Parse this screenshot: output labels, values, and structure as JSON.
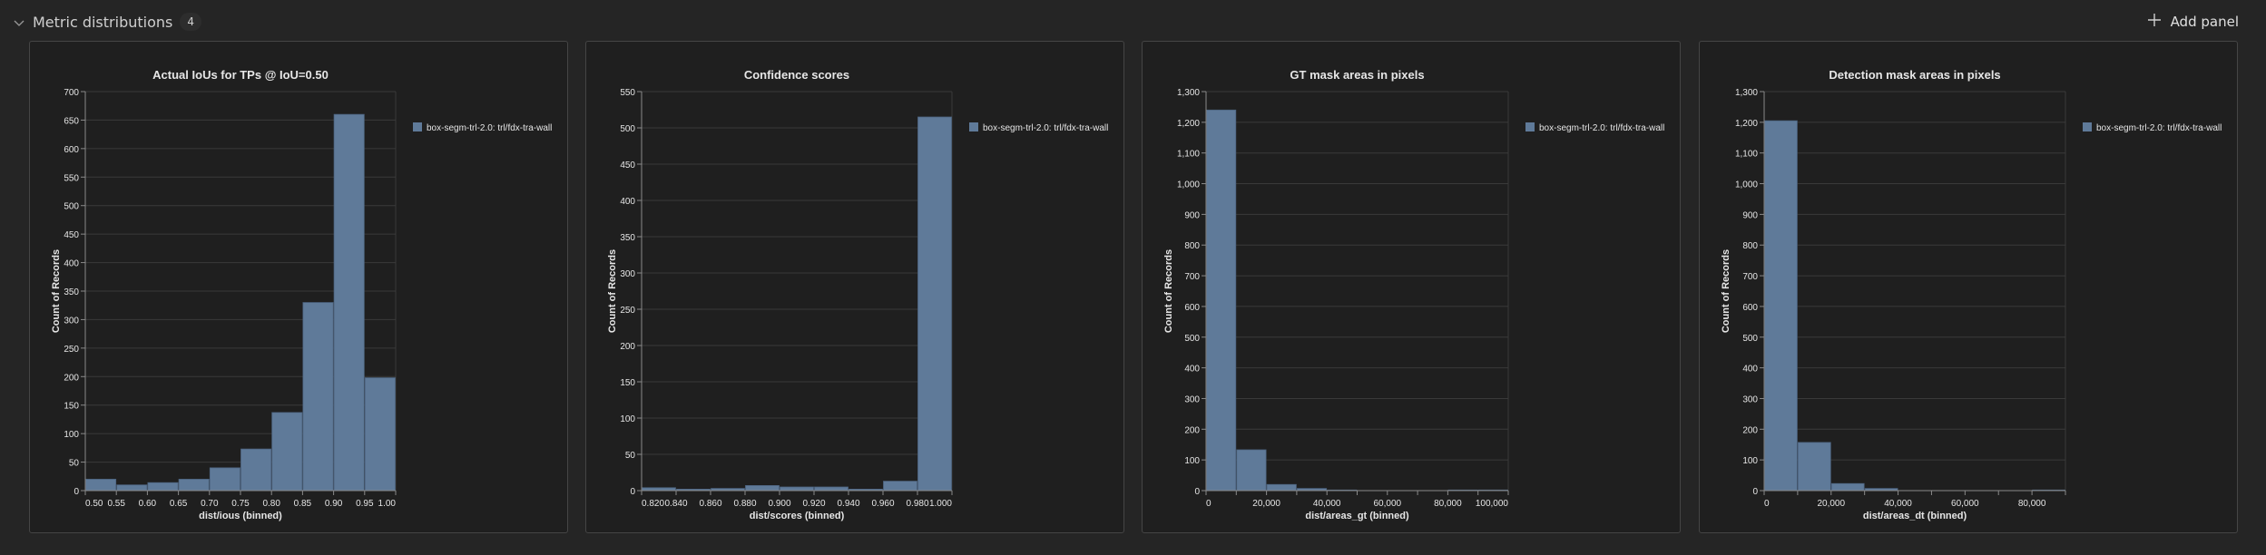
{
  "header": {
    "title": "Metric distributions",
    "count": "4",
    "add_panel_label": "Add panel"
  },
  "colors": {
    "bar": "#5f7a99",
    "bar_stroke": "#1f1f1f",
    "grid": "#3a3a3a",
    "axis": "#8a8a8a"
  },
  "chart_data": [
    {
      "type": "bar",
      "title": "Actual IoUs for TPs @ IoU=0.50",
      "xlabel": "dist/ious (binned)",
      "ylabel": "Count of Records",
      "legend": "box-segm-trl-2.0: trl/fdx-tra-wall",
      "legend_position": "right",
      "bin_edges": [
        0.5,
        0.55,
        0.6,
        0.65,
        0.7,
        0.75,
        0.8,
        0.85,
        0.9,
        0.95,
        1.0
      ],
      "values": [
        20,
        10,
        14,
        20,
        40,
        73,
        137,
        330,
        660,
        198
      ],
      "xlim": [
        0.5,
        1.0
      ],
      "xticks": [
        0.5,
        0.55,
        0.6,
        0.65,
        0.7,
        0.75,
        0.8,
        0.85,
        0.9,
        0.95,
        1.0
      ],
      "xtick_labels": [
        "0.50",
        "0.55",
        "0.60",
        "0.65",
        "0.70",
        "0.75",
        "0.80",
        "0.85",
        "0.90",
        "0.95",
        "1.00"
      ],
      "ylim": [
        0,
        700
      ],
      "yticks": [
        0,
        50,
        100,
        150,
        200,
        250,
        300,
        350,
        400,
        450,
        500,
        550,
        600,
        650,
        700
      ],
      "ytick_labels": [
        "0",
        "50",
        "100",
        "150",
        "200",
        "250",
        "300",
        "350",
        "400",
        "450",
        "500",
        "550",
        "600",
        "650",
        "700"
      ],
      "grid": true
    },
    {
      "type": "bar",
      "title": "Confidence scores",
      "xlabel": "dist/scores (binned)",
      "ylabel": "Count of Records",
      "legend": "box-segm-trl-2.0: trl/fdx-tra-wall",
      "legend_position": "right",
      "bin_edges": [
        0.82,
        0.84,
        0.86,
        0.88,
        0.9,
        0.92,
        0.94,
        0.96,
        0.98,
        1.0
      ],
      "values": [
        4,
        2,
        3,
        7,
        5,
        5,
        2,
        13,
        515
      ],
      "xlim": [
        0.82,
        1.0
      ],
      "xticks": [
        0.82,
        0.84,
        0.86,
        0.88,
        0.9,
        0.92,
        0.94,
        0.96,
        0.98,
        1.0
      ],
      "xtick_labels": [
        "0.820",
        "0.840",
        "0.860",
        "0.880",
        "0.900",
        "0.920",
        "0.940",
        "0.960",
        "0.980",
        "1.000"
      ],
      "ylim": [
        0,
        550
      ],
      "yticks": [
        0,
        50,
        100,
        150,
        200,
        250,
        300,
        350,
        400,
        450,
        500,
        550
      ],
      "ytick_labels": [
        "0",
        "50",
        "100",
        "150",
        "200",
        "250",
        "300",
        "350",
        "400",
        "450",
        "500",
        "550"
      ],
      "grid": true
    },
    {
      "type": "bar",
      "title": "GT mask areas in pixels",
      "xlabel": "dist/areas_gt (binned)",
      "ylabel": "Count of Records",
      "legend": "box-segm-trl-2.0: trl/fdx-tra-wall",
      "legend_position": "right",
      "bin_edges": [
        0,
        10000,
        20000,
        30000,
        40000,
        50000,
        60000,
        70000,
        80000,
        90000,
        100000
      ],
      "values": [
        1240,
        133,
        20,
        7,
        2,
        0,
        0,
        0,
        2,
        2
      ],
      "xlim": [
        0,
        100000
      ],
      "xticks": [
        0,
        10000,
        20000,
        30000,
        40000,
        50000,
        60000,
        70000,
        80000,
        90000,
        100000
      ],
      "xtick_labels": [
        "0",
        "",
        "20,000",
        "",
        "40,000",
        "",
        "60,000",
        "",
        "80,000",
        "",
        "100,000"
      ],
      "ylim": [
        0,
        1300
      ],
      "yticks": [
        0,
        100,
        200,
        300,
        400,
        500,
        600,
        700,
        800,
        900,
        1000,
        1100,
        1200,
        1300
      ],
      "ytick_labels": [
        "0",
        "100",
        "200",
        "300",
        "400",
        "500",
        "600",
        "700",
        "800",
        "900",
        "1,000",
        "1,100",
        "1,200",
        "1,300"
      ],
      "grid": true
    },
    {
      "type": "bar",
      "title": "Detection mask areas in pixels",
      "xlabel": "dist/areas_dt (binned)",
      "ylabel": "Count of Records",
      "legend": "box-segm-trl-2.0: trl/fdx-tra-wall",
      "legend_position": "right",
      "bin_edges": [
        0,
        10000,
        20000,
        30000,
        40000,
        50000,
        60000,
        70000,
        80000,
        90000
      ],
      "values": [
        1205,
        157,
        23,
        7,
        0,
        0,
        0,
        0,
        2
      ],
      "xlim": [
        0,
        90000
      ],
      "xticks": [
        0,
        10000,
        20000,
        30000,
        40000,
        50000,
        60000,
        70000,
        80000,
        90000
      ],
      "xtick_labels": [
        "0",
        "",
        "20,000",
        "",
        "40,000",
        "",
        "60,000",
        "",
        "80,000",
        ""
      ],
      "ylim": [
        0,
        1300
      ],
      "yticks": [
        0,
        100,
        200,
        300,
        400,
        500,
        600,
        700,
        800,
        900,
        1000,
        1100,
        1200,
        1300
      ],
      "ytick_labels": [
        "0",
        "100",
        "200",
        "300",
        "400",
        "500",
        "600",
        "700",
        "800",
        "900",
        "1,000",
        "1,100",
        "1,200",
        "1,300"
      ],
      "grid": true
    }
  ]
}
